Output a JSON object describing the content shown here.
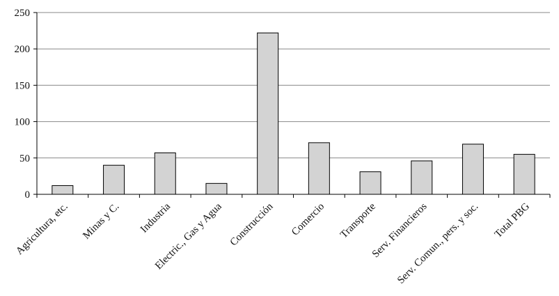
{
  "chart_data": {
    "type": "bar",
    "categories": [
      "Agricultura, etc.",
      "Minas y C.",
      "Industria",
      "Electric., Gas y Agua",
      "Construcción",
      "Comercio",
      "Transporte",
      "Serv. Financieros",
      "Serv. Comun., pers. y soc.",
      "Total PBG"
    ],
    "values": [
      12,
      40,
      57,
      15,
      222,
      71,
      31,
      46,
      69,
      55
    ],
    "color": "#d3d3d3",
    "ylim": [
      0,
      250
    ],
    "yticks": [
      0,
      50,
      100,
      150,
      200,
      250
    ],
    "grid": true
  }
}
